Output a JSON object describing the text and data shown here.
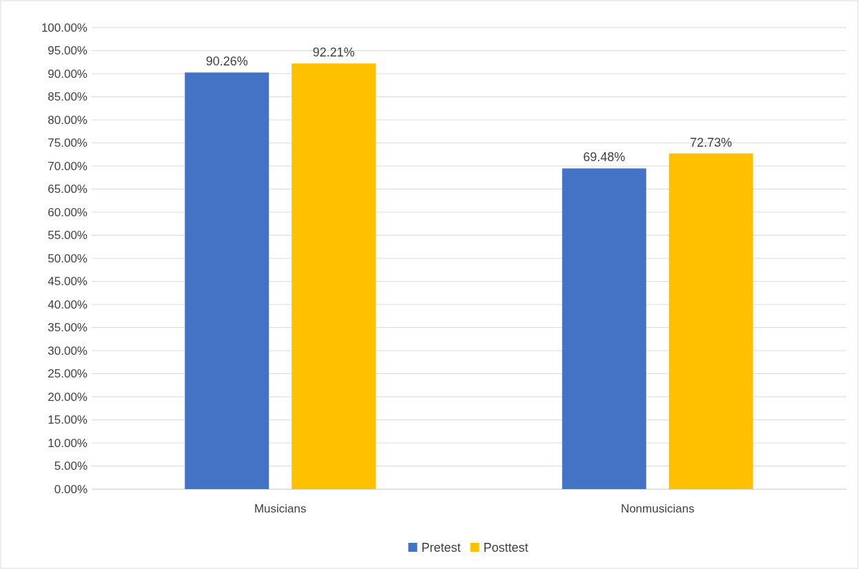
{
  "chart_data": {
    "type": "bar",
    "categories": [
      "Musicians",
      "Nonmusicians"
    ],
    "series": [
      {
        "name": "Pretest",
        "color": "#4472c4",
        "values": [
          90.26,
          69.48
        ],
        "value_labels": [
          "90.26%",
          "69.48%"
        ]
      },
      {
        "name": "Posttest",
        "color": "#ffc000",
        "values": [
          92.21,
          72.73
        ],
        "value_labels": [
          "92.21%",
          "72.73%"
        ]
      }
    ],
    "ylim": [
      0,
      100
    ],
    "yticks": [
      {
        "value": 0,
        "label": "0.00%"
      },
      {
        "value": 5,
        "label": "5.00%"
      },
      {
        "value": 10,
        "label": "10.00%"
      },
      {
        "value": 15,
        "label": "15.00%"
      },
      {
        "value": 20,
        "label": "20.00%"
      },
      {
        "value": 25,
        "label": "25.00%"
      },
      {
        "value": 30,
        "label": "30.00%"
      },
      {
        "value": 35,
        "label": "35.00%"
      },
      {
        "value": 40,
        "label": "40.00%"
      },
      {
        "value": 45,
        "label": "45.00%"
      },
      {
        "value": 50,
        "label": "50.00%"
      },
      {
        "value": 55,
        "label": "55.00%"
      },
      {
        "value": 60,
        "label": "60.00%"
      },
      {
        "value": 65,
        "label": "65.00%"
      },
      {
        "value": 70,
        "label": "70.00%"
      },
      {
        "value": 75,
        "label": "75.00%"
      },
      {
        "value": 80,
        "label": "80.00%"
      },
      {
        "value": 85,
        "label": "85.00%"
      },
      {
        "value": 90,
        "label": "90.00%"
      },
      {
        "value": 95,
        "label": "95.00%"
      },
      {
        "value": 100,
        "label": "100.00%"
      }
    ],
    "grid": "y",
    "legend": "bottom"
  }
}
